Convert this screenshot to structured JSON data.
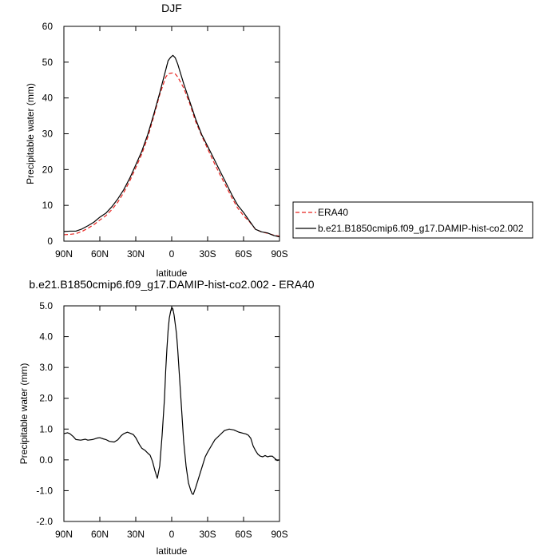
{
  "chart_data": [
    {
      "type": "line",
      "title": "DJF",
      "xlabel": "latitude",
      "ylabel": "Precipitable water (mm)",
      "xlim": [
        90,
        -90
      ],
      "ylim": [
        0,
        60
      ],
      "x_ticks": [
        90,
        60,
        30,
        0,
        -30,
        -60,
        -90
      ],
      "x_tick_labels": [
        "90N",
        "60N",
        "30N",
        "0",
        "30S",
        "60S",
        "90S"
      ],
      "y_ticks": [
        0,
        10,
        20,
        30,
        40,
        50,
        60
      ],
      "y_tick_labels": [
        "0",
        "10",
        "20",
        "30",
        "40",
        "50",
        "60"
      ],
      "grid": false,
      "legend_position": "right",
      "series": [
        {
          "name": "ERA40",
          "color": "#e8231f",
          "dash": "dashed",
          "x": [
            90,
            85,
            80,
            75,
            70,
            65,
            60,
            55,
            50,
            45,
            40,
            35,
            30,
            25,
            20,
            15,
            10,
            5,
            3,
            1,
            -1,
            -3,
            -5,
            -10,
            -15,
            -20,
            -25,
            -30,
            -35,
            -40,
            -45,
            -50,
            -55,
            -60,
            -65,
            -70,
            -75,
            -80,
            -85,
            -90
          ],
          "y": [
            1.8,
            1.9,
            2.1,
            2.7,
            3.6,
            4.6,
            5.9,
            7.1,
            8.8,
            10.9,
            13.6,
            16.8,
            20.5,
            24.3,
            29.0,
            34.8,
            40.9,
            45.8,
            46.7,
            46.9,
            47.0,
            46.7,
            45.9,
            42.8,
            38.5,
            33.4,
            29.5,
            25.8,
            22.2,
            18.8,
            15.6,
            12.3,
            9.3,
            7.1,
            5.4,
            3.3,
            2.6,
            2.2,
            1.7,
            1.4
          ]
        },
        {
          "name": "b.e21.B1850cmip6.f09_g17.DAMIP-hist-co2.002",
          "color": "#000000",
          "dash": "solid",
          "x": [
            90,
            85,
            80,
            75,
            70,
            65,
            60,
            55,
            50,
            45,
            40,
            35,
            30,
            25,
            20,
            15,
            10,
            5,
            3,
            1,
            -1,
            -3,
            -5,
            -10,
            -15,
            -20,
            -25,
            -30,
            -35,
            -40,
            -45,
            -50,
            -55,
            -60,
            -65,
            -70,
            -75,
            -80,
            -85,
            -90
          ],
          "y": [
            2.7,
            2.8,
            2.8,
            3.4,
            4.3,
            5.3,
            6.7,
            7.8,
            9.6,
            11.8,
            14.4,
            17.6,
            21.3,
            25.1,
            29.8,
            35.4,
            41.4,
            47.8,
            50.4,
            51.3,
            51.9,
            51.2,
            49.5,
            44.0,
            39.1,
            34.1,
            29.8,
            26.5,
            23.2,
            19.8,
            16.5,
            13.1,
            10.1,
            8.0,
            5.6,
            3.3,
            2.6,
            2.3,
            1.6,
            1.2
          ]
        }
      ]
    },
    {
      "type": "line",
      "title": "b.e21.B1850cmip6.f09_g17.DAMIP-hist-co2.002 - ERA40",
      "xlabel": "latitude",
      "ylabel": "Precipitable water (mm)",
      "xlim": [
        90,
        -90
      ],
      "ylim": [
        -2.0,
        5.0
      ],
      "x_ticks": [
        90,
        60,
        30,
        0,
        -30,
        -60,
        -90
      ],
      "x_tick_labels": [
        "90N",
        "60N",
        "30N",
        "0",
        "30S",
        "60S",
        "90S"
      ],
      "y_ticks": [
        -2.0,
        -1.0,
        0.0,
        1.0,
        2.0,
        3.0,
        4.0,
        5.0
      ],
      "y_tick_labels": [
        "-2.0",
        "-1.0",
        "0.0",
        "1.0",
        "2.0",
        "3.0",
        "4.0",
        "5.0"
      ],
      "grid": false,
      "series": [
        {
          "color": "#000000",
          "dash": "solid",
          "x": [
            90,
            87,
            85,
            82,
            80,
            76,
            72,
            70,
            66,
            62,
            60,
            57,
            55,
            52,
            48,
            45,
            42,
            40,
            37,
            35,
            32,
            30,
            27,
            25,
            22,
            20,
            18,
            16,
            14,
            12,
            11,
            10,
            8,
            6,
            5,
            4,
            3,
            2,
            1,
            0,
            -1,
            -2,
            -3,
            -4,
            -5,
            -6,
            -8,
            -10,
            -12,
            -14,
            -16,
            -17,
            -18,
            -20,
            -22,
            -24,
            -26,
            -28,
            -30,
            -33,
            -36,
            -40,
            -44,
            -48,
            -52,
            -56,
            -60,
            -62,
            -64,
            -66,
            -68,
            -70,
            -72,
            -74,
            -76,
            -78,
            -80,
            -82,
            -84,
            -86,
            -88,
            -90
          ],
          "y": [
            0.85,
            0.88,
            0.85,
            0.75,
            0.66,
            0.64,
            0.67,
            0.64,
            0.66,
            0.71,
            0.72,
            0.68,
            0.66,
            0.6,
            0.58,
            0.65,
            0.79,
            0.85,
            0.9,
            0.87,
            0.82,
            0.72,
            0.5,
            0.38,
            0.3,
            0.22,
            0.15,
            -0.05,
            -0.35,
            -0.6,
            -0.4,
            -0.2,
            0.8,
            2.0,
            2.9,
            3.6,
            4.2,
            4.6,
            4.8,
            4.95,
            4.9,
            4.7,
            4.4,
            4.1,
            3.6,
            3.0,
            1.8,
            0.6,
            -0.2,
            -0.75,
            -1.0,
            -1.1,
            -1.12,
            -0.9,
            -0.65,
            -0.4,
            -0.15,
            0.1,
            0.25,
            0.45,
            0.65,
            0.8,
            0.95,
            1.0,
            0.97,
            0.9,
            0.86,
            0.84,
            0.8,
            0.7,
            0.45,
            0.3,
            0.18,
            0.12,
            0.1,
            0.14,
            0.1,
            0.12,
            0.12,
            0.05,
            -0.02,
            0.0
          ]
        }
      ]
    }
  ]
}
